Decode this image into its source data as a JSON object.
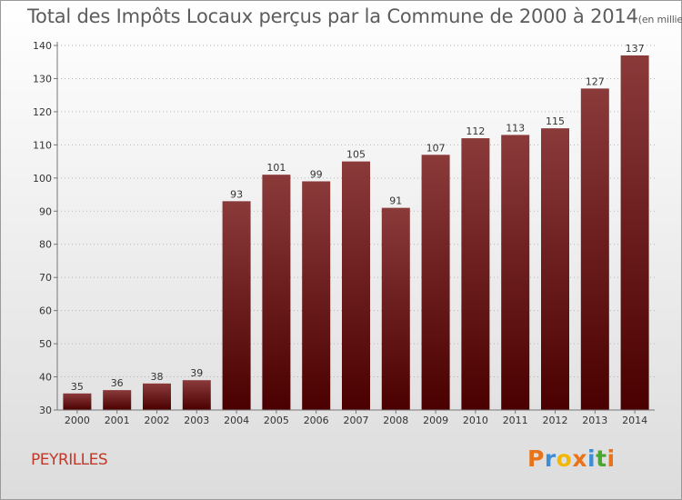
{
  "chart_data": {
    "type": "bar",
    "title": "Total des Impôts Locaux perçus par la Commune de 2000 à 2014",
    "subtitle": "(en milliers d'€)",
    "categories": [
      "2000",
      "2001",
      "2002",
      "2003",
      "2004",
      "2005",
      "2006",
      "2007",
      "2008",
      "2009",
      "2010",
      "2011",
      "2012",
      "2013",
      "2014"
    ],
    "values": [
      35,
      36,
      38,
      39,
      93,
      101,
      99,
      105,
      91,
      107,
      112,
      113,
      115,
      127,
      137
    ],
    "ylim": [
      30,
      140
    ],
    "yticks": [
      30,
      40,
      50,
      60,
      70,
      80,
      90,
      100,
      110,
      120,
      130,
      140
    ],
    "xlabel": "",
    "ylabel": "",
    "grid": true,
    "bar_color_top": "#8b3a3a",
    "bar_color_bottom": "#4a0000"
  },
  "commune": "PEYRILLES",
  "logo": {
    "letters": [
      "P",
      "r",
      "o",
      "x",
      "i",
      "t",
      "i"
    ],
    "colors": [
      "#e8731a",
      "#3c8fd6",
      "#f2b705",
      "#e8731a",
      "#3c8fd6",
      "#4aa832",
      "#e8731a"
    ]
  }
}
